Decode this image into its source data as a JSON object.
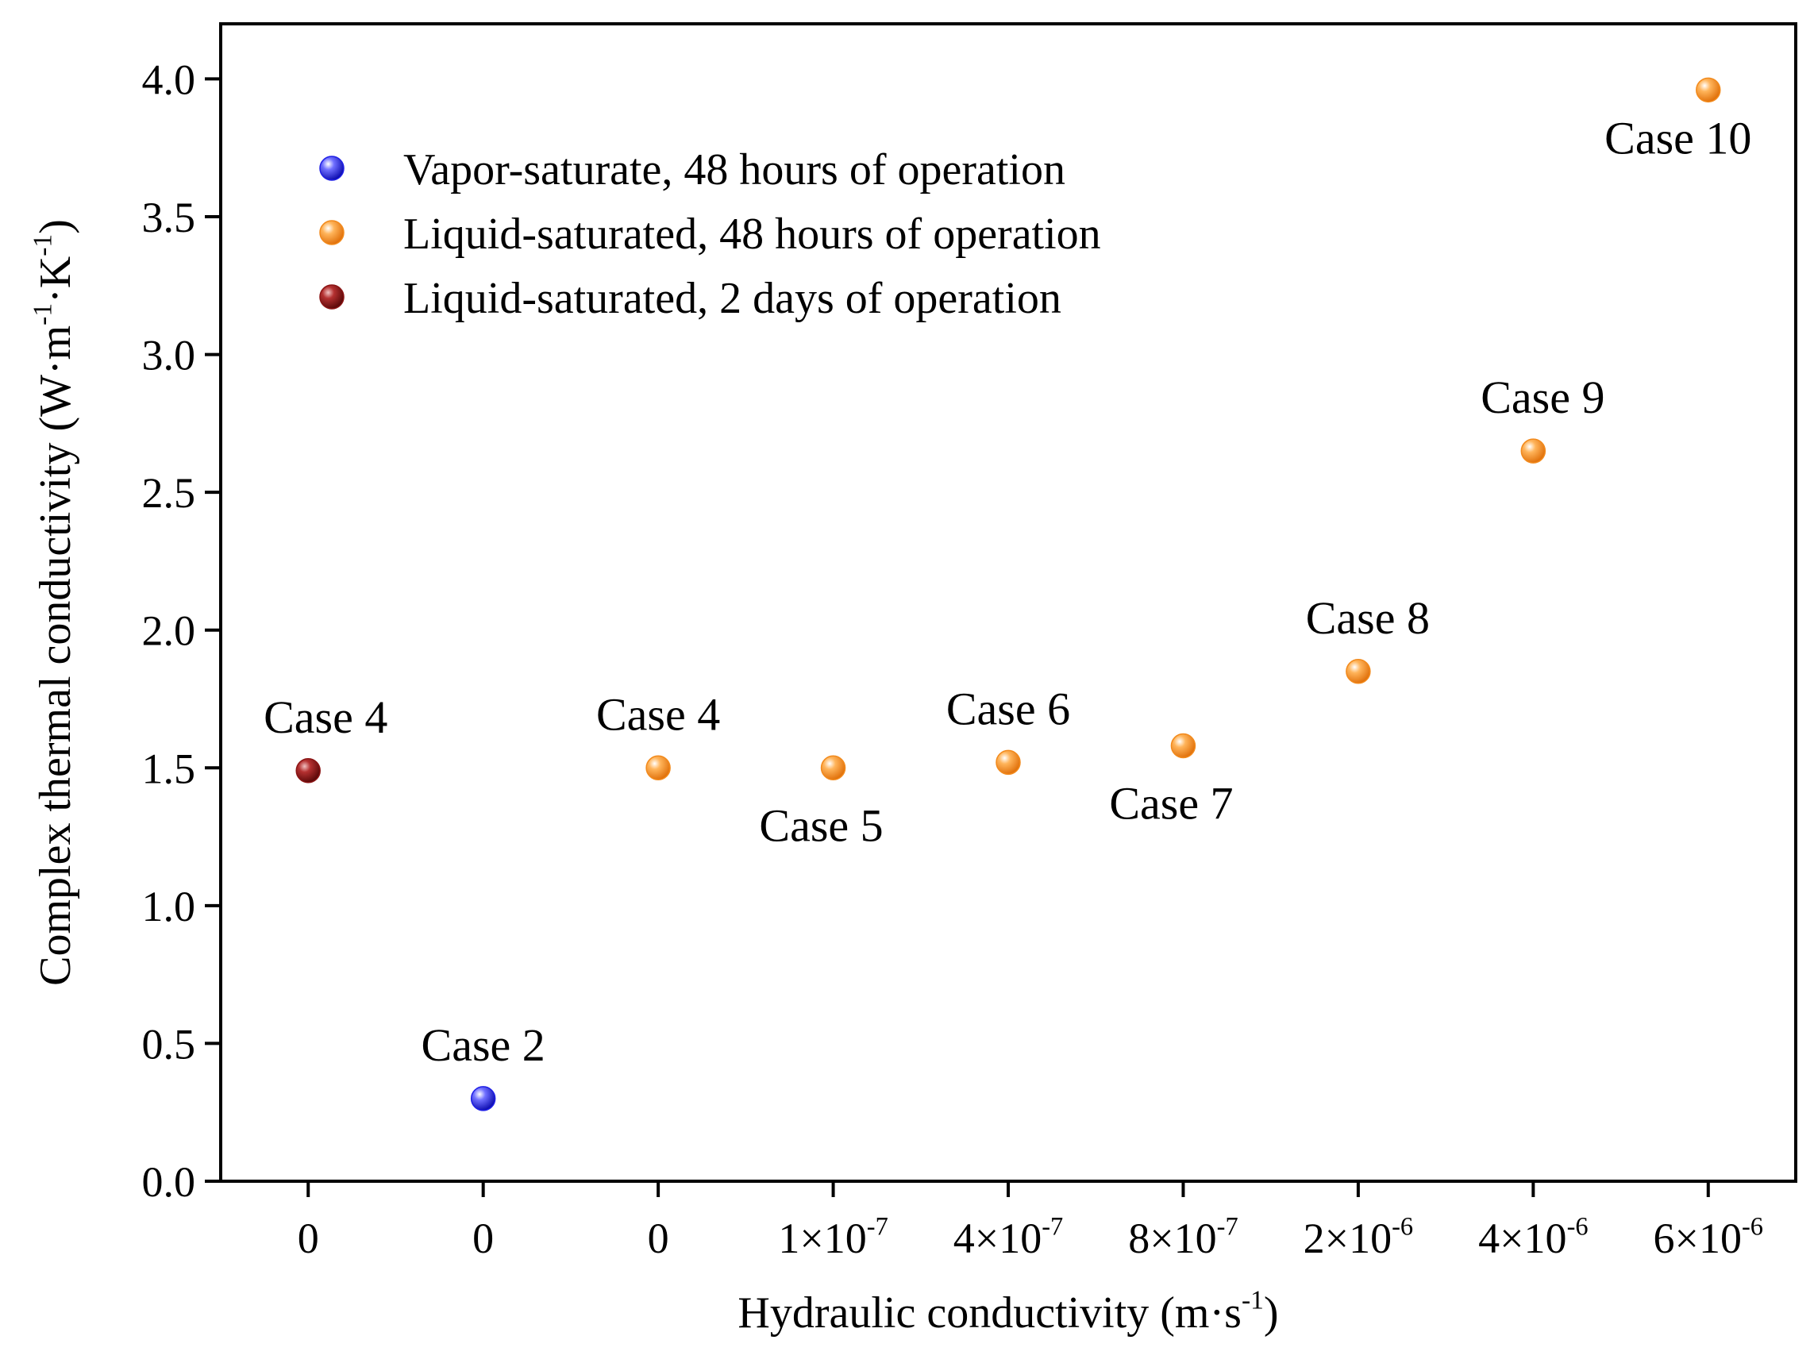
{
  "chart_data": {
    "type": "scatter",
    "title": "",
    "xlabel": "Hydraulic conductivity (m·s",
    "xlabel_sup": "-1",
    "xlabel_close": ")",
    "ylabel_parts": [
      {
        "t": "Complex thermal conductivity (W·m",
        "sup": false
      },
      {
        "t": "-1",
        "sup": true
      },
      {
        "t": "·K",
        "sup": false
      },
      {
        "t": "-1",
        "sup": true
      },
      {
        "t": ")",
        "sup": false
      }
    ],
    "ylim": [
      0,
      4.2
    ],
    "yticks": [
      "0.0",
      "0.5",
      "1.0",
      "1.5",
      "2.0",
      "2.5",
      "3.0",
      "3.5",
      "4.0"
    ],
    "ytick_values": [
      0,
      0.5,
      1.0,
      1.5,
      2.0,
      2.5,
      3.0,
      3.5,
      4.0
    ],
    "x_positions": [
      1,
      2,
      3,
      4,
      5,
      6,
      7,
      8,
      9
    ],
    "xlim": [
      0.5,
      9.5
    ],
    "xticks": [
      {
        "pos": 1,
        "base": "0",
        "exp": ""
      },
      {
        "pos": 2,
        "base": "0",
        "exp": ""
      },
      {
        "pos": 3,
        "base": "0",
        "exp": ""
      },
      {
        "pos": 4,
        "base": "1×10",
        "exp": "-7"
      },
      {
        "pos": 5,
        "base": "4×10",
        "exp": "-7"
      },
      {
        "pos": 6,
        "base": "8×10",
        "exp": "-7"
      },
      {
        "pos": 7,
        "base": "2×10",
        "exp": "-6"
      },
      {
        "pos": 8,
        "base": "4×10",
        "exp": "-6"
      },
      {
        "pos": 9,
        "base": "6×10",
        "exp": "-6"
      }
    ],
    "legend_position": "top-left",
    "series": [
      {
        "name": "Vapor-saturate, 48 hours of operation",
        "color": "#1f1fe6",
        "points": [
          {
            "x": 2,
            "y": 0.3,
            "label": "Case 2",
            "label_pos": "above"
          }
        ]
      },
      {
        "name": "Liquid-saturated, 48 hours of operation",
        "color": "#f28a1c",
        "points": [
          {
            "x": 3,
            "y": 1.5,
            "label": "Case 4",
            "label_pos": "above"
          },
          {
            "x": 4,
            "y": 1.5,
            "label": "Case 5",
            "label_pos": "below"
          },
          {
            "x": 5,
            "y": 1.52,
            "label": "Case 6",
            "label_pos": "above"
          },
          {
            "x": 6,
            "y": 1.58,
            "label": "Case 7",
            "label_pos": "below"
          },
          {
            "x": 7,
            "y": 1.85,
            "label": "Case 8",
            "label_pos": "above"
          },
          {
            "x": 8,
            "y": 2.65,
            "label": "Case 9",
            "label_pos": "above"
          },
          {
            "x": 9,
            "y": 3.96,
            "label": "Case 10",
            "label_pos": "below"
          }
        ]
      },
      {
        "name": "Liquid-saturated, 2 days of operation",
        "color": "#8b1414",
        "points": [
          {
            "x": 1,
            "y": 1.49,
            "label": "Case 4",
            "label_pos": "above"
          }
        ]
      }
    ]
  }
}
